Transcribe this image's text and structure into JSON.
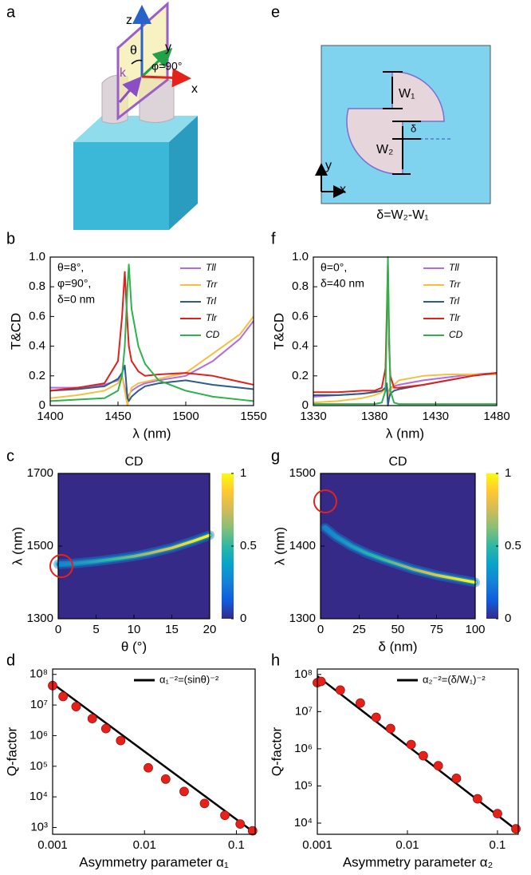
{
  "panel_labels": [
    "a",
    "e",
    "b",
    "f",
    "c",
    "g",
    "d",
    "h"
  ],
  "diagram_a": {
    "labels": [
      "z",
      "θ",
      "y",
      "k",
      "φ=90°",
      "x"
    ]
  },
  "diagram_e": {
    "labels": [
      "W₁",
      "δ",
      "W₂",
      "y",
      "x",
      "δ=W₂-W₁"
    ]
  },
  "chart_data": [
    {
      "type": "line",
      "xlabel": "λ (nm)",
      "ylabel": "T&CD",
      "annotations": [
        "θ=8°,",
        "φ=90°,",
        "δ=0 nm"
      ],
      "x": [
        1400,
        1420,
        1440,
        1450,
        1453,
        1455,
        1457,
        1458,
        1460,
        1465,
        1470,
        1480,
        1500,
        1520,
        1540,
        1550
      ],
      "series": [
        {
          "name": "Tll",
          "color": "#b36ae2",
          "values": [
            0.12,
            0.12,
            0.14,
            0.17,
            0.2,
            0.12,
            0.05,
            0.07,
            0.1,
            0.13,
            0.15,
            0.17,
            0.2,
            0.3,
            0.45,
            0.57
          ]
        },
        {
          "name": "Trr",
          "color": "#f5c040",
          "values": [
            0.05,
            0.07,
            0.1,
            0.15,
            0.2,
            0.1,
            0.0,
            0.05,
            0.12,
            0.15,
            0.16,
            0.18,
            0.22,
            0.35,
            0.48,
            0.6
          ]
        },
        {
          "name": "Trl",
          "color": "#2d5b8a",
          "values": [
            0.1,
            0.11,
            0.13,
            0.18,
            0.22,
            0.27,
            0.05,
            0.03,
            0.06,
            0.1,
            0.13,
            0.15,
            0.17,
            0.14,
            0.12,
            0.11
          ]
        },
        {
          "name": "Tlr",
          "color": "#e0211b",
          "values": [
            0.1,
            0.12,
            0.15,
            0.3,
            0.6,
            0.9,
            0.55,
            0.4,
            0.3,
            0.23,
            0.2,
            0.21,
            0.22,
            0.2,
            0.16,
            0.14
          ]
        },
        {
          "name": "CD",
          "color": "#2cb34a",
          "values": [
            0.03,
            0.04,
            0.05,
            0.1,
            0.2,
            0.4,
            0.8,
            0.95,
            0.65,
            0.4,
            0.28,
            0.17,
            0.1,
            0.06,
            0.04,
            0.03
          ]
        }
      ],
      "xlim": [
        1400,
        1550
      ],
      "xticks": [
        1400,
        1450,
        1500,
        1550
      ],
      "ylim": [
        0,
        1
      ],
      "yticks": [
        0,
        0.2,
        0.4,
        0.6,
        0.8,
        {
          "value": 1,
          "label": "1.0"
        }
      ],
      "legend": "upper right"
    },
    {
      "type": "heatmap",
      "title": "CD",
      "xlabel": "θ (°)",
      "ylabel": "λ (nm)",
      "x": [
        0,
        2,
        5,
        8,
        10,
        12,
        15,
        18,
        20
      ],
      "values": [
        1450,
        1452,
        1458,
        1466,
        1472,
        1480,
        1495,
        1515,
        1530
      ],
      "xlim": [
        0,
        20
      ],
      "xticks": [
        0,
        5,
        10,
        15,
        20
      ],
      "ylim": [
        1300,
        1700
      ],
      "yticks": [
        1300,
        1500,
        1700
      ],
      "zlim": [
        0,
        1
      ],
      "zticks": [
        0,
        0.5,
        1
      ],
      "colormap": [
        "#352a87",
        "#0f5cdd",
        "#1481d6",
        "#06a4ca",
        "#2eb7a4",
        "#87bf77",
        "#d1bb59",
        "#fec832",
        "#f9fb0e"
      ]
    },
    {
      "type": "scatter",
      "xlabel": "Asymmetry parameter α₁",
      "ylabel": "Q-factor",
      "xlog": true,
      "ylog": true,
      "points": {
        "color": "#e8201a",
        "x": [
          0.001,
          0.0013,
          0.0018,
          0.0027,
          0.0038,
          0.0055,
          0.011,
          0.017,
          0.027,
          0.045,
          0.075,
          0.11,
          0.15
        ],
        "values": [
          43000000,
          19000000,
          8900000,
          3600000,
          1700000,
          690000,
          89000,
          38000,
          15000,
          6100,
          2500,
          1300,
          780
        ]
      },
      "series": [
        {
          "name": "α₁⁻²=(sinθ)⁻²",
          "color": "#000000",
          "x": [
            0.001,
            0.16
          ],
          "values": [
            50000000,
            650
          ]
        }
      ],
      "xlim": [
        0.001,
        0.16
      ],
      "xticks": [
        0.001,
        0.01,
        0.1
      ],
      "ylim": [
        600,
        150000000
      ],
      "yticks": [
        {
          "value": 1000,
          "label": "10³"
        },
        {
          "value": 10000,
          "label": "10⁴"
        },
        {
          "value": 100000,
          "label": "10⁵"
        },
        {
          "value": 1000000,
          "label": "10⁶"
        },
        {
          "value": 10000000,
          "label": "10⁷"
        },
        {
          "value": 100000000,
          "label": "10⁸"
        }
      ],
      "legend": "upper right"
    },
    {
      "type": "line",
      "xlabel": "λ (nm)",
      "ylabel": "T&CD",
      "annotations": [
        "θ=0°,",
        "δ=40 nm"
      ],
      "x": [
        1330,
        1350,
        1370,
        1380,
        1386,
        1389,
        1390,
        1391,
        1392,
        1393,
        1396,
        1400,
        1420,
        1440,
        1460,
        1480
      ],
      "series": [
        {
          "name": "Tll",
          "color": "#b36ae2",
          "values": [
            0.06,
            0.07,
            0.08,
            0.09,
            0.1,
            0.12,
            0.15,
            0.05,
            0.1,
            0.12,
            0.13,
            0.14,
            0.17,
            0.19,
            0.21,
            0.22
          ]
        },
        {
          "name": "Trr",
          "color": "#f5c040",
          "values": [
            0.02,
            0.03,
            0.05,
            0.07,
            0.09,
            0.11,
            0.15,
            0.1,
            0.05,
            0.1,
            0.14,
            0.17,
            0.2,
            0.21,
            0.21,
            0.21
          ]
        },
        {
          "name": "Trl",
          "color": "#2d5b8a",
          "values": [
            0.07,
            0.07,
            0.08,
            0.09,
            0.1,
            0.12,
            0.15,
            0.0,
            0.05,
            0.08,
            0.1,
            0.11,
            0.14,
            0.17,
            0.2,
            0.22
          ]
        },
        {
          "name": "Tlr",
          "color": "#e0211b",
          "values": [
            0.09,
            0.09,
            0.1,
            0.1,
            0.12,
            0.25,
            0.6,
            0.95,
            0.4,
            0.2,
            0.12,
            0.12,
            0.14,
            0.17,
            0.2,
            0.22
          ]
        },
        {
          "name": "CD",
          "color": "#2cb34a",
          "values": [
            0.01,
            0.01,
            0.01,
            0.01,
            0.02,
            0.1,
            0.5,
            1.0,
            0.5,
            0.1,
            0.02,
            0.01,
            0.01,
            0.01,
            0.01,
            0.01
          ]
        }
      ],
      "xlim": [
        1330,
        1480
      ],
      "xticks": [
        1330,
        1380,
        1430,
        1480
      ],
      "ylim": [
        0,
        1
      ],
      "yticks": [
        0,
        0.2,
        0.4,
        0.6,
        0.8,
        {
          "value": 1,
          "label": "1.0"
        }
      ],
      "legend": "upper right"
    },
    {
      "type": "heatmap",
      "title": "CD",
      "xlabel": "δ (nm)",
      "ylabel": "λ (nm)",
      "x": [
        3,
        10,
        20,
        30,
        40,
        50,
        60,
        75,
        90,
        100
      ],
      "values": [
        1425,
        1413,
        1400,
        1390,
        1382,
        1375,
        1368,
        1360,
        1354,
        1350
      ],
      "xlim": [
        0,
        100
      ],
      "xticks": [
        0,
        25,
        50,
        75,
        100
      ],
      "ylim": [
        1300,
        1500
      ],
      "yticks": [
        1300,
        1400,
        1500
      ],
      "zlim": [
        0,
        1
      ],
      "zticks": [
        0,
        0.5,
        1
      ],
      "colormap": [
        "#352a87",
        "#0f5cdd",
        "#1481d6",
        "#06a4ca",
        "#2eb7a4",
        "#87bf77",
        "#d1bb59",
        "#fec832",
        "#f9fb0e"
      ]
    },
    {
      "type": "scatter",
      "xlabel": "Asymmetry parameter α₂",
      "ylabel": "Q-factor",
      "xlog": true,
      "ylog": true,
      "points": {
        "color": "#e8201a",
        "x": [
          0.001,
          0.0011,
          0.0018,
          0.003,
          0.0045,
          0.0065,
          0.011,
          0.015,
          0.022,
          0.035,
          0.06,
          0.1,
          0.16
        ],
        "values": [
          60000000,
          65000000,
          38000000,
          17000000,
          7000000,
          3500000,
          1300000,
          650000,
          350000,
          160000,
          45000,
          18000,
          7000
        ]
      },
      "series": [
        {
          "name": "α₂⁻²=(δ/W₁)⁻²",
          "color": "#000000",
          "x": [
            0.001,
            0.17
          ],
          "values": [
            90000000,
            6000
          ]
        }
      ],
      "xlim": [
        0.001,
        0.17
      ],
      "xticks": [
        0.001,
        0.01,
        0.1
      ],
      "ylim": [
        5000,
        140000000
      ],
      "yticks": [
        {
          "value": 10000,
          "label": "10⁴"
        },
        {
          "value": 100000,
          "label": "10⁵"
        },
        {
          "value": 1000000,
          "label": "10⁶"
        },
        {
          "value": 10000000,
          "label": "10⁷"
        },
        {
          "value": 100000000,
          "label": "10⁸"
        }
      ],
      "legend": "upper right"
    }
  ]
}
